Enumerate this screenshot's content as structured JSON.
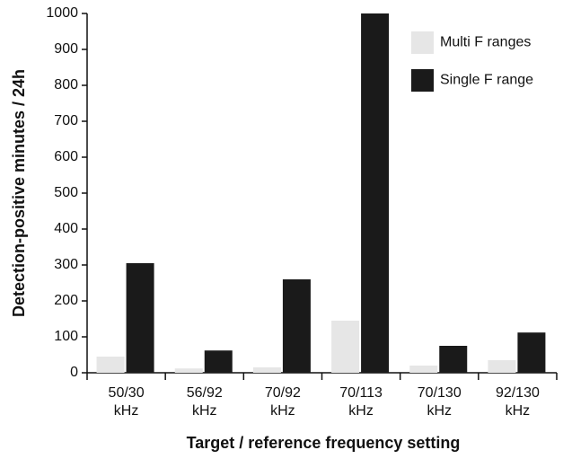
{
  "chart_data": {
    "type": "bar",
    "x_label": "Target / reference frequency setting",
    "y_label": "Detection-positive minutes / 24h",
    "categories": [
      "50/30 kHz",
      "56/92 kHz",
      "70/92 kHz",
      "70/113 kHz",
      "70/130 kHz",
      "92/130 kHz"
    ],
    "series": [
      {
        "name": "Multi F ranges",
        "color": "#e6e6e6",
        "values": [
          45,
          12,
          15,
          145,
          20,
          35
        ]
      },
      {
        "name": "Single F range",
        "color": "#1a1a1a",
        "values": [
          305,
          62,
          260,
          1000,
          75,
          112
        ]
      }
    ],
    "ylim": [
      0,
      1000
    ],
    "yticks": [
      0,
      100,
      200,
      300,
      400,
      500,
      600,
      700,
      800,
      900,
      1000
    ],
    "grid": false,
    "legend": "top-right"
  }
}
